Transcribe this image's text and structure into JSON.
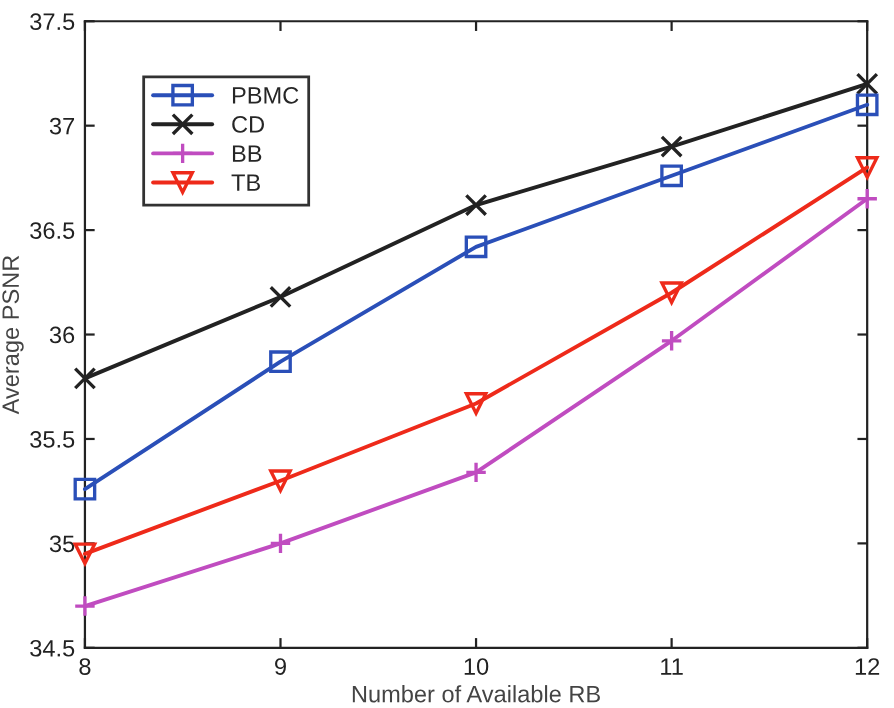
{
  "chart_data": {
    "type": "line",
    "xlabel": "Number of Available RB",
    "ylabel": "Average PSNR",
    "x": [
      8,
      9,
      10,
      11,
      12
    ],
    "series": [
      {
        "name": "PBMC",
        "color": "#2a4fb8",
        "marker": "square",
        "values": [
          35.26,
          35.87,
          36.42,
          36.76,
          37.1
        ]
      },
      {
        "name": "CD",
        "color": "#222222",
        "marker": "cross",
        "values": [
          35.79,
          36.18,
          36.62,
          36.9,
          37.2
        ]
      },
      {
        "name": "BB",
        "color": "#c04cc0",
        "marker": "plus",
        "values": [
          34.7,
          35.0,
          35.34,
          35.97,
          36.65
        ]
      },
      {
        "name": "TB",
        "color": "#ee2a1a",
        "marker": "triangle_down",
        "values": [
          34.95,
          35.3,
          35.67,
          36.2,
          36.8
        ]
      }
    ],
    "xlim": [
      8,
      12
    ],
    "xticks": [
      8,
      9,
      10,
      11,
      12
    ],
    "ylim": [
      34.5,
      37.5
    ],
    "yticks": [
      34.5,
      35,
      35.5,
      36,
      36.5,
      37,
      37.5
    ],
    "grid": false,
    "legend": "top left",
    "line_style": "solid"
  }
}
